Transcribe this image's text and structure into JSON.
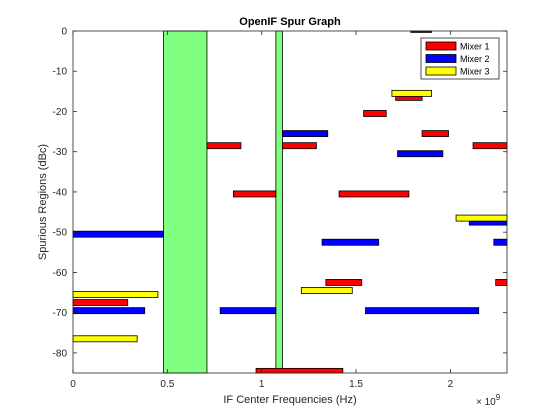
{
  "chart_data": {
    "type": "bar",
    "title": "OpenIF Spur Graph",
    "xlabel": "IF Center Frequencies (Hz)",
    "ylabel": "Spurious Regions (dBc)",
    "x_exponent_label": "× 10",
    "x_exponent_power": "9",
    "xlim": [
      0,
      2300000000.0
    ],
    "ylim": [
      -85,
      0
    ],
    "x_ticks": [
      {
        "value": 0,
        "label": "0"
      },
      {
        "value": 500000000.0,
        "label": "0.5"
      },
      {
        "value": 1000000000.0,
        "label": "1"
      },
      {
        "value": 1500000000.0,
        "label": "1.5"
      },
      {
        "value": 2000000000.0,
        "label": "2"
      }
    ],
    "y_ticks": [
      {
        "value": 0,
        "label": "0"
      },
      {
        "value": -10,
        "label": "-10"
      },
      {
        "value": -20,
        "label": "-20"
      },
      {
        "value": -30,
        "label": "-30"
      },
      {
        "value": -40,
        "label": "-40"
      },
      {
        "value": -50,
        "label": "-50"
      },
      {
        "value": -60,
        "label": "-60"
      },
      {
        "value": -70,
        "label": "-70"
      },
      {
        "value": -80,
        "label": "-80"
      }
    ],
    "grid": false,
    "legend_position": "top-right",
    "bar_height_dbc": 1.5,
    "open_regions": {
      "color": "#80ff80",
      "ranges": [
        [
          480000000.0,
          710000000.0
        ],
        [
          1075000000.0,
          1110000000.0
        ]
      ]
    },
    "series": [
      {
        "name": "Mixer 1",
        "color": "#ff0000",
        "spurs": [
          [
            710000000.0,
            890000000.0,
            -28.5
          ],
          [
            850000000.0,
            1075000000.0,
            -40.5
          ],
          [
            1110000000.0,
            1290000000.0,
            -28.5
          ],
          [
            1410000000.0,
            1780000000.0,
            -40.5
          ],
          [
            1540000000.0,
            1660000000.0,
            -20.5
          ],
          [
            1710000000.0,
            1850000000.0,
            -16.5
          ],
          [
            1850000000.0,
            1990000000.0,
            -25.5
          ],
          [
            2120000000.0,
            2300000000.0,
            -28.5
          ],
          [
            0.0,
            290000000.0,
            -67.5
          ],
          [
            1340000000.0,
            1530000000.0,
            -62.5
          ],
          [
            2240000000.0,
            2300000000.0,
            -62.5
          ],
          [
            970000000.0,
            1430000000.0,
            -84.6
          ]
        ]
      },
      {
        "name": "Mixer 2",
        "color": "#0000ff",
        "spurs": [
          [
            1110000000.0,
            1350000000.0,
            -25.5
          ],
          [
            1720000000.0,
            1960000000.0,
            -30.5
          ],
          [
            0.0,
            480000000.0,
            -50.5
          ],
          [
            1320000000.0,
            1620000000.0,
            -52.5
          ],
          [
            2100000000.0,
            2300000000.0,
            -47.5
          ],
          [
            2230000000.0,
            2300000000.0,
            -52.5
          ],
          [
            0.0,
            380000000.0,
            -69.5
          ],
          [
            780000000.0,
            1075000000.0,
            -69.5
          ],
          [
            1550000000.0,
            2150000000.0,
            -69.5
          ],
          [
            1790000000.0,
            1900000000.0,
            0.4
          ]
        ]
      },
      {
        "name": "Mixer 3",
        "color": "#ffff00",
        "spurs": [
          [
            1690000000.0,
            1900000000.0,
            -15.5
          ],
          [
            2030000000.0,
            2300000000.0,
            -46.5
          ],
          [
            1210000000.0,
            1480000000.0,
            -64.5
          ],
          [
            0.0,
            450000000.0,
            -65.5
          ],
          [
            0.0,
            340000000.0,
            -76.5
          ]
        ]
      }
    ]
  }
}
